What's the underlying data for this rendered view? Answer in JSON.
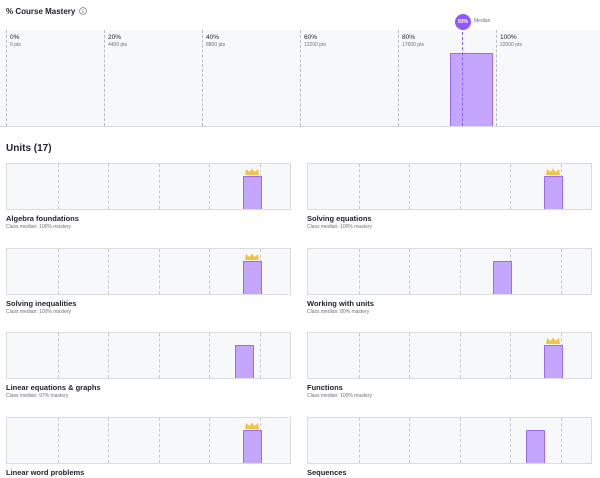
{
  "course_mastery": {
    "title": "% Course Mastery",
    "info_icon": "info-icon",
    "ticks": [
      {
        "pct": "0%",
        "pts": "0 pts"
      },
      {
        "pct": "20%",
        "pts": "4400 pts"
      },
      {
        "pct": "40%",
        "pts": "8800 pts"
      },
      {
        "pct": "60%",
        "pts": "13200 pts"
      },
      {
        "pct": "80%",
        "pts": "17600 pts"
      },
      {
        "pct": "100%",
        "pts": "22000 pts"
      }
    ],
    "median_value": "93%",
    "median_label": "Median",
    "bar": {
      "bucket": "90-95%",
      "level": 0.8
    }
  },
  "units": {
    "title": "Units (17)",
    "items": [
      {
        "name": "Algebra foundations",
        "median": "Class median: 100% mastery",
        "median_pct": 100,
        "crown": true
      },
      {
        "name": "Solving equations",
        "median": "Class median: 100% mastery",
        "median_pct": 100,
        "crown": true
      },
      {
        "name": "Solving inequalities",
        "median": "Class median: 100% mastery",
        "median_pct": 100,
        "crown": true
      },
      {
        "name": "Working with units",
        "median": "Class median: 80% mastery",
        "median_pct": 80,
        "crown": false
      },
      {
        "name": "Linear equations & graphs",
        "median": "Class median: 97% mastery",
        "median_pct": 97,
        "crown": false
      },
      {
        "name": "Functions",
        "median": "Class median: 100% mastery",
        "median_pct": 100,
        "crown": true
      },
      {
        "name": "Linear word problems",
        "median": "",
        "median_pct": 100,
        "crown": true
      },
      {
        "name": "Sequences",
        "median": "",
        "median_pct": 93,
        "crown": false
      }
    ]
  },
  "colors": {
    "bar_fill": "#c4a6ff",
    "bar_border": "#9b6cf3",
    "median_accent": "#9059ff",
    "crown": "#f5c242"
  }
}
